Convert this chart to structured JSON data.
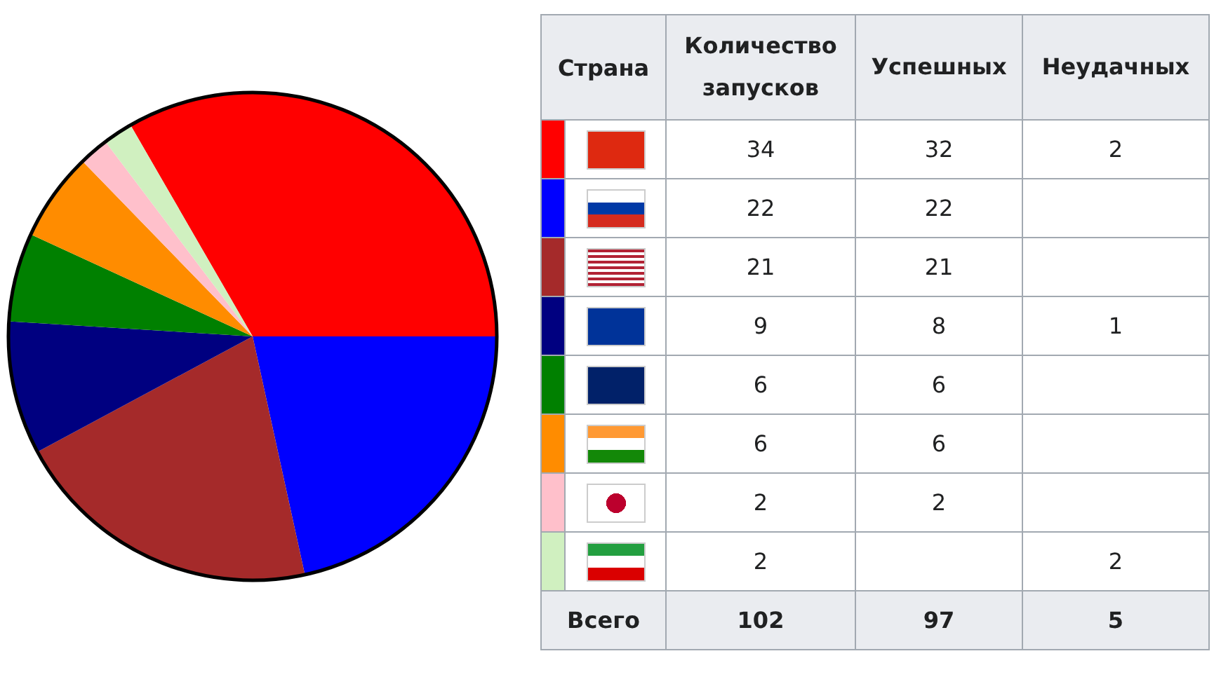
{
  "chart_data": [
    {
      "type": "pie",
      "categories": [
        null,
        null,
        null,
        null,
        null,
        null,
        null,
        null
      ],
      "values": [
        34,
        22,
        21,
        9,
        6,
        6,
        2,
        2
      ],
      "colors": [
        "#ff0000",
        "#0000ff",
        "#a52a2a",
        "#000080",
        "#008000",
        "#ff8c00",
        "#ffc0cb",
        "#d0f0c0"
      ]
    },
    {
      "type": "other",
      "annotations": [
        "Страна",
        "Количество запусков",
        "Успешных",
        "Неудачных",
        null,
        "34",
        "32",
        "2",
        null,
        "22",
        "22",
        null,
        null,
        "21",
        "21",
        null,
        null,
        "9",
        "8",
        "1",
        null,
        "6",
        "6",
        null,
        null,
        "6",
        "6",
        null,
        null,
        "2",
        "2",
        null,
        null,
        "2",
        null,
        "2",
        "Всего",
        "102",
        "97",
        "5"
      ]
    }
  ]
}
